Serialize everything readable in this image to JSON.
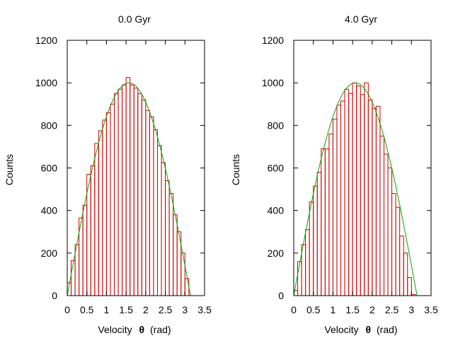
{
  "chart_data": [
    {
      "type": "bar",
      "title": "0.0 Gyr",
      "xlabel": "Velocity",
      "xlabel_symbol": "θ",
      "xlabel_unit": "(rad)",
      "ylabel": "Counts",
      "xlim": [
        0,
        3.5
      ],
      "ylim": [
        0,
        1200
      ],
      "x_ticks": [
        "0",
        "0.5",
        "1",
        "1.5",
        "2",
        "2.5",
        "3",
        "3.5"
      ],
      "y_ticks": [
        "0",
        "200",
        "400",
        "600",
        "800",
        "1000",
        "1200"
      ],
      "bin_width": 0.1,
      "bin_starts": [
        0.0,
        0.1,
        0.2,
        0.3,
        0.4,
        0.5,
        0.6,
        0.7,
        0.8,
        0.9,
        1.0,
        1.1,
        1.2,
        1.3,
        1.4,
        1.5,
        1.6,
        1.7,
        1.8,
        1.9,
        2.0,
        2.1,
        2.2,
        2.3,
        2.4,
        2.5,
        2.6,
        2.7,
        2.8,
        2.9,
        3.0,
        3.1
      ],
      "values": [
        60,
        165,
        240,
        365,
        425,
        570,
        610,
        715,
        775,
        825,
        860,
        900,
        950,
        970,
        990,
        1025,
        990,
        975,
        950,
        920,
        870,
        840,
        780,
        705,
        625,
        540,
        480,
        380,
        300,
        200,
        80,
        0
      ],
      "fit_curve": "A·sin(θ), A ≈ 1000",
      "fit_amplitude": 1000,
      "colors": {
        "bars": "#cc0000",
        "fit": "#00aa00",
        "frame": "#000000"
      }
    },
    {
      "type": "bar",
      "title": "4.0 Gyr",
      "xlabel": "Velocity",
      "xlabel_symbol": "θ",
      "xlabel_unit": "(rad)",
      "ylabel": "Counts",
      "xlim": [
        0,
        3.5
      ],
      "ylim": [
        0,
        1200
      ],
      "x_ticks": [
        "0",
        "0.5",
        "1",
        "1.5",
        "2",
        "2.5",
        "3",
        "3.5"
      ],
      "y_ticks": [
        "0",
        "200",
        "400",
        "600",
        "800",
        "1000",
        "1200"
      ],
      "bin_width": 0.1,
      "bin_starts": [
        0.0,
        0.1,
        0.2,
        0.3,
        0.4,
        0.5,
        0.6,
        0.7,
        0.8,
        0.9,
        1.0,
        1.1,
        1.2,
        1.3,
        1.4,
        1.5,
        1.6,
        1.7,
        1.8,
        1.9,
        2.0,
        2.1,
        2.2,
        2.3,
        2.4,
        2.5,
        2.6,
        2.7,
        2.8,
        2.9,
        3.0,
        3.1
      ],
      "values": [
        25,
        160,
        240,
        310,
        440,
        515,
        580,
        690,
        690,
        760,
        830,
        895,
        915,
        970,
        950,
        1000,
        985,
        945,
        1000,
        920,
        880,
        890,
        750,
        665,
        600,
        480,
        415,
        280,
        200,
        85,
        5,
        0
      ],
      "fit_curve": "A·sin(θ), A ≈ 1000",
      "fit_amplitude": 1000,
      "colors": {
        "bars": "#cc0000",
        "fit": "#00aa00",
        "frame": "#000000"
      }
    }
  ]
}
